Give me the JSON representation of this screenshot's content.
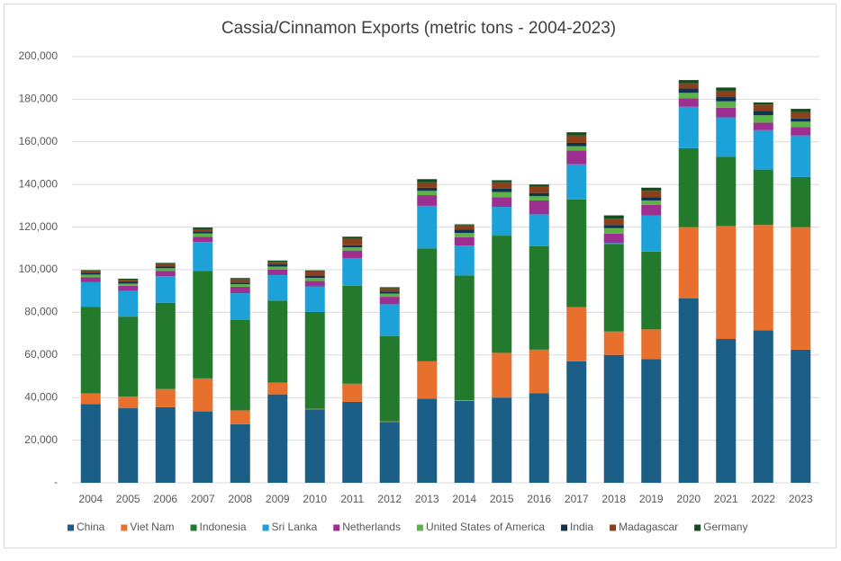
{
  "chart_data": {
    "type": "stacked_bar",
    "title": "Cassia/Cinnamon Exports (metric tons - 2004-2023)",
    "categories": [
      "2004",
      "2005",
      "2006",
      "2007",
      "2008",
      "2009",
      "2010",
      "2011",
      "2012",
      "2013",
      "2014",
      "2015",
      "2016",
      "2017",
      "2018",
      "2019",
      "2020",
      "2021",
      "2022",
      "2023"
    ],
    "series": [
      {
        "name": "China",
        "color": "#1c5f86",
        "values": [
          37000,
          35000,
          35500,
          33500,
          27500,
          41500,
          34500,
          38000,
          28500,
          39500,
          38500,
          40000,
          42000,
          57000,
          60000,
          58000,
          86500,
          67500,
          71500,
          62500
        ]
      },
      {
        "name": "Viet Nam",
        "color": "#e8702f",
        "values": [
          5000,
          5500,
          8500,
          15500,
          6500,
          5500,
          200,
          8500,
          300,
          17500,
          300,
          21000,
          20500,
          25500,
          11000,
          14000,
          33500,
          53000,
          49500,
          57500
        ]
      },
      {
        "name": "Indonesia",
        "color": "#237a2d",
        "values": [
          40500,
          37500,
          40500,
          50500,
          42500,
          38500,
          45500,
          46000,
          40000,
          53000,
          58500,
          55000,
          48500,
          50500,
          41000,
          36500,
          37000,
          32500,
          26000,
          23500
        ]
      },
      {
        "name": "Sri Lanka",
        "color": "#1ca2d8",
        "values": [
          11800,
          12000,
          12500,
          13500,
          12500,
          12000,
          12000,
          13000,
          15000,
          20000,
          14000,
          13500,
          15000,
          16500,
          500,
          17000,
          19500,
          18500,
          18500,
          19500
        ]
      },
      {
        "name": "Netherlands",
        "color": "#9c2f8f",
        "values": [
          2100,
          2500,
          2500,
          2500,
          3000,
          2500,
          2500,
          3500,
          3500,
          5000,
          4000,
          4500,
          6500,
          6500,
          4500,
          5000,
          4000,
          4500,
          3500,
          4000
        ]
      },
      {
        "name": "United States of America",
        "color": "#5db347",
        "values": [
          1300,
          1000,
          1200,
          1500,
          1200,
          1500,
          1500,
          1500,
          1500,
          2000,
          2000,
          2500,
          2000,
          2000,
          2500,
          2000,
          2500,
          3000,
          3500,
          2500
        ]
      },
      {
        "name": "India",
        "color": "#0d3350",
        "values": [
          800,
          800,
          800,
          1000,
          800,
          1000,
          1000,
          1000,
          1000,
          1500,
          1500,
          1500,
          1500,
          1500,
          1500,
          1500,
          2000,
          2000,
          2000,
          1500
        ]
      },
      {
        "name": "Madagascar",
        "color": "#8b3f1b",
        "values": [
          900,
          1000,
          1200,
          1000,
          1500,
          1200,
          2000,
          3000,
          1500,
          2500,
          2000,
          3000,
          3000,
          3500,
          3000,
          3000,
          2500,
          3000,
          3000,
          3000
        ]
      },
      {
        "name": "Germany",
        "color": "#104e1b",
        "values": [
          400,
          500,
          500,
          800,
          600,
          600,
          500,
          1000,
          500,
          1500,
          500,
          1000,
          1000,
          1500,
          1500,
          1500,
          1500,
          1500,
          1000,
          1500
        ]
      }
    ],
    "ylim": [
      0,
      200000
    ],
    "yticks": [
      {
        "value": 0,
        "label": "-"
      },
      {
        "value": 20000,
        "label": "20,000"
      },
      {
        "value": 40000,
        "label": "40,000"
      },
      {
        "value": 60000,
        "label": "60,000"
      },
      {
        "value": 80000,
        "label": "80,000"
      },
      {
        "value": 100000,
        "label": "100,000"
      },
      {
        "value": 120000,
        "label": "120,000"
      },
      {
        "value": 140000,
        "label": "140,000"
      },
      {
        "value": 160000,
        "label": "160,000"
      },
      {
        "value": 180000,
        "label": "180,000"
      },
      {
        "value": 200000,
        "label": "200,000"
      }
    ],
    "grid": true,
    "legend": "bottom"
  }
}
